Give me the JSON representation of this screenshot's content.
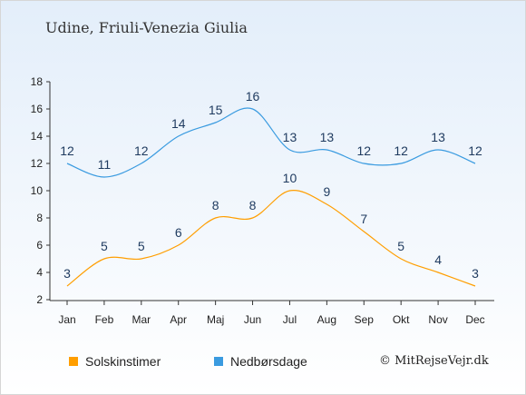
{
  "title": "Udine, Friuli-Venezia Giulia",
  "copyright": "© MitRejseVejr.dk",
  "chart_data": {
    "type": "line",
    "categories": [
      "Jan",
      "Feb",
      "Mar",
      "Apr",
      "Maj",
      "Jun",
      "Jul",
      "Aug",
      "Sep",
      "Okt",
      "Nov",
      "Dec"
    ],
    "ylim": [
      2,
      18
    ],
    "yticks": [
      2,
      4,
      6,
      8,
      10,
      12,
      14,
      16,
      18
    ],
    "grid": false,
    "legend_position": "bottom-left",
    "series": [
      {
        "name": "Solskinstimer",
        "color": "#ff9e00",
        "values": [
          3,
          5,
          5,
          6,
          8,
          8,
          10,
          9,
          7,
          5,
          4,
          3
        ]
      },
      {
        "name": "Nedbørsdage",
        "color": "#3a9be0",
        "values": [
          12,
          11,
          12,
          14,
          15,
          16,
          13,
          13,
          12,
          12,
          13,
          12
        ]
      }
    ]
  }
}
